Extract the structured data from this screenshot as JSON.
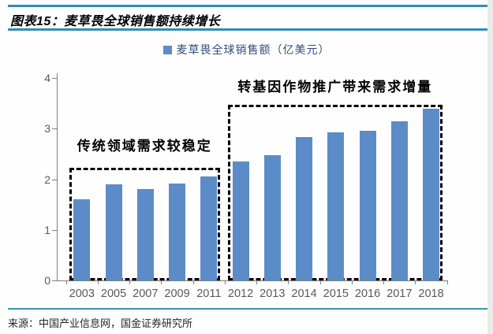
{
  "header": {
    "title": "图表15：麦草畏全球销售额持续增长"
  },
  "legend": {
    "label": "麦草畏全球销售额（亿美元）"
  },
  "chart_data": {
    "type": "bar",
    "title": "麦草畏全球销售额（亿美元）",
    "categories": [
      "2003",
      "2005",
      "2007",
      "2009",
      "2011",
      "2012",
      "2013",
      "2014",
      "2015",
      "2016",
      "2017",
      "2018"
    ],
    "values": [
      1.6,
      1.9,
      1.8,
      1.92,
      2.05,
      2.35,
      2.48,
      2.83,
      2.92,
      2.95,
      3.15,
      3.4
    ],
    "xlabel": "",
    "ylabel": "",
    "ylim": [
      0,
      4
    ],
    "yticks": [
      0,
      1,
      2,
      3,
      4
    ],
    "grid": false,
    "legend_position": "top-center",
    "annotations": [
      {
        "text": "传统领域需求较稳定",
        "box_from": "2003",
        "box_to": "2011",
        "box_top_value": 2.22
      },
      {
        "text": "转基因作物推广带来需求增量",
        "box_from": "2012",
        "box_to": "2018",
        "box_top_value": 3.47
      }
    ]
  },
  "footer": {
    "source": "来源：中国产业信息网，国金证券研究所"
  },
  "colors": {
    "rule_top": "#2F8FB2",
    "rule_bottom": "#359AA6",
    "bar": "#5B8CC8",
    "legend_text": "#2F4E7E",
    "axis": "#7F7F7F",
    "tick_label": "#595959"
  }
}
